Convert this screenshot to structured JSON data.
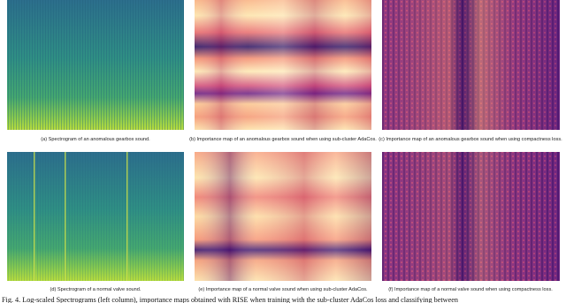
{
  "figures": [
    {
      "caption": "(a) Spectrogram of an anomalous gearbox sound."
    },
    {
      "caption": "(b) Importance map of an anomalous gearbox sound when using sub-cluster AdaCos."
    },
    {
      "caption": "(c) Importance map of an anomalous gearbox sound when using compactness loss."
    },
    {
      "caption": "(d) Spectrogram of a normal valve sound."
    },
    {
      "caption": "(e) Importance map of a normal valve sound when using sub-cluster AdaCos."
    },
    {
      "caption": "(f) Importance map of a normal valve sound when using compactness loss."
    }
  ],
  "figure_caption": "Fig. 4.  Log-scaled Spectrograms (left column), importance maps obtained with RISE when training with the sub-cluster AdaCos loss and classifying between"
}
